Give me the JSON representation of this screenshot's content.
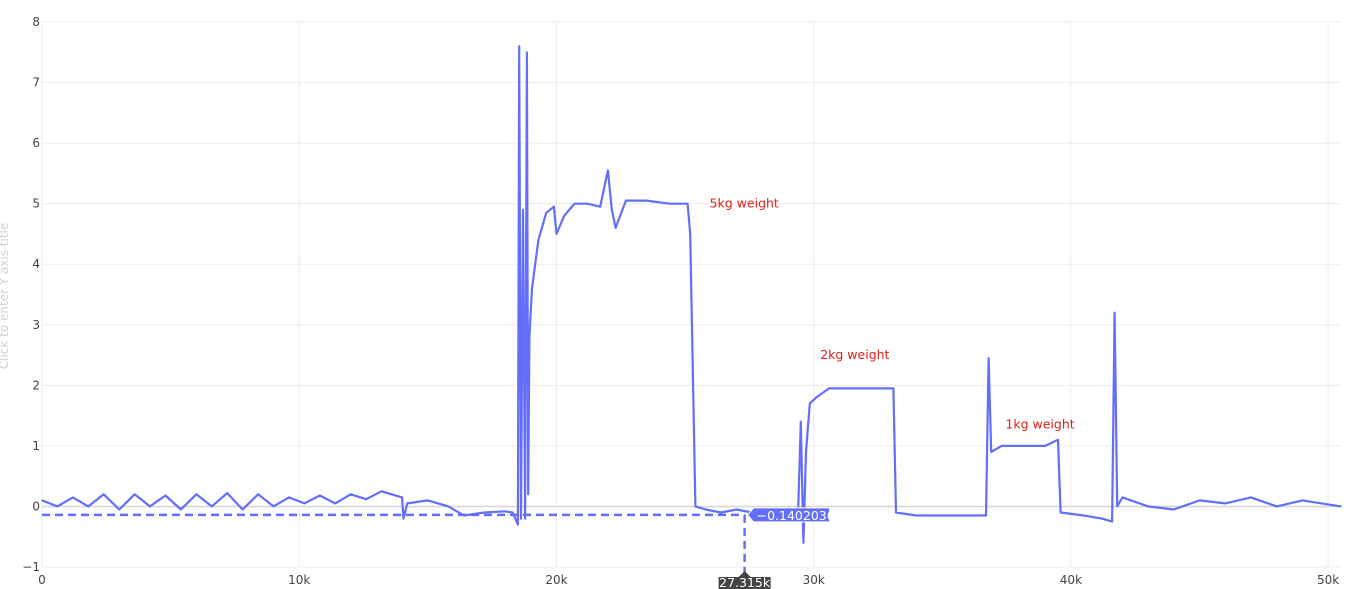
{
  "chart_data": {
    "type": "line",
    "title": "",
    "xlabel": "",
    "ylabel_placeholder": "Click to enter Y axis title",
    "xlim": [
      0,
      50500
    ],
    "ylim": [
      -1,
      8
    ],
    "x_ticks": [
      0,
      10000,
      20000,
      30000,
      40000,
      50000
    ],
    "x_tick_labels": [
      "0",
      "10k",
      "20k",
      "30k",
      "40k",
      "50k"
    ],
    "y_ticks": [
      -1,
      0,
      1,
      2,
      3,
      4,
      5,
      6,
      7,
      8
    ],
    "y_tick_labels": [
      "−1",
      "0",
      "1",
      "2",
      "3",
      "4",
      "5",
      "6",
      "7",
      "8"
    ],
    "grid": true,
    "line_color": "#636efa",
    "annotation_color": "#e0201a",
    "annotations": [
      {
        "text": "5kg weight",
        "x": 27300,
        "y": 5.0
      },
      {
        "text": "2kg weight",
        "x": 31600,
        "y": 2.5
      },
      {
        "text": "1kg weight",
        "x": 38800,
        "y": 1.35
      }
    ],
    "hover": {
      "x": 27315,
      "y": -0.1402036,
      "x_label": "27.315k",
      "y_label": "−0.1402036"
    },
    "series": [
      {
        "points": [
          [
            0,
            0.1
          ],
          [
            600,
            0.0
          ],
          [
            1200,
            0.15
          ],
          [
            1800,
            0.0
          ],
          [
            2400,
            0.2
          ],
          [
            3000,
            -0.05
          ],
          [
            3600,
            0.2
          ],
          [
            4200,
            0.0
          ],
          [
            4800,
            0.18
          ],
          [
            5400,
            -0.05
          ],
          [
            6000,
            0.2
          ],
          [
            6600,
            0.0
          ],
          [
            7200,
            0.22
          ],
          [
            7800,
            -0.05
          ],
          [
            8400,
            0.2
          ],
          [
            9000,
            0.0
          ],
          [
            9600,
            0.15
          ],
          [
            10200,
            0.05
          ],
          [
            10800,
            0.18
          ],
          [
            11400,
            0.05
          ],
          [
            12000,
            0.2
          ],
          [
            12600,
            0.12
          ],
          [
            13200,
            0.25
          ],
          [
            14000,
            0.15
          ],
          [
            14050,
            -0.2
          ],
          [
            14200,
            0.05
          ],
          [
            15000,
            0.1
          ],
          [
            15800,
            0.0
          ],
          [
            16400,
            -0.15
          ],
          [
            17200,
            -0.1
          ],
          [
            18000,
            -0.08
          ],
          [
            18300,
            -0.1
          ],
          [
            18500,
            -0.3
          ],
          [
            18550,
            7.6
          ],
          [
            18620,
            -0.2
          ],
          [
            18700,
            4.9
          ],
          [
            18780,
            -0.2
          ],
          [
            18850,
            7.5
          ],
          [
            18900,
            0.2
          ],
          [
            18950,
            2.8
          ],
          [
            19050,
            3.6
          ],
          [
            19300,
            4.4
          ],
          [
            19600,
            4.85
          ],
          [
            19900,
            4.95
          ],
          [
            20000,
            4.5
          ],
          [
            20300,
            4.8
          ],
          [
            20700,
            5.0
          ],
          [
            21200,
            5.0
          ],
          [
            21700,
            4.95
          ],
          [
            22000,
            5.55
          ],
          [
            22150,
            4.9
          ],
          [
            22300,
            4.6
          ],
          [
            22700,
            5.05
          ],
          [
            23500,
            5.05
          ],
          [
            24400,
            5.0
          ],
          [
            25100,
            5.0
          ],
          [
            25200,
            4.5
          ],
          [
            25400,
            0.0
          ],
          [
            25800,
            -0.05
          ],
          [
            26400,
            -0.1
          ],
          [
            27000,
            -0.05
          ],
          [
            27600,
            -0.1
          ],
          [
            28200,
            -0.05
          ],
          [
            28800,
            -0.05
          ],
          [
            29400,
            -0.05
          ],
          [
            29500,
            1.4
          ],
          [
            29600,
            -0.6
          ],
          [
            29700,
            0.9
          ],
          [
            29850,
            1.7
          ],
          [
            30100,
            1.8
          ],
          [
            30600,
            1.95
          ],
          [
            31600,
            1.95
          ],
          [
            32400,
            1.95
          ],
          [
            33100,
            1.95
          ],
          [
            33200,
            -0.1
          ],
          [
            34000,
            -0.15
          ],
          [
            35000,
            -0.15
          ],
          [
            36000,
            -0.15
          ],
          [
            36700,
            -0.15
          ],
          [
            36800,
            2.45
          ],
          [
            36900,
            0.9
          ],
          [
            37300,
            1.0
          ],
          [
            38200,
            1.0
          ],
          [
            39000,
            1.0
          ],
          [
            39500,
            1.1
          ],
          [
            39600,
            -0.1
          ],
          [
            40500,
            -0.15
          ],
          [
            41200,
            -0.2
          ],
          [
            41600,
            -0.25
          ],
          [
            41700,
            3.2
          ],
          [
            41800,
            0.0
          ],
          [
            42000,
            0.15
          ],
          [
            43000,
            0.0
          ],
          [
            44000,
            -0.05
          ],
          [
            45000,
            0.1
          ],
          [
            46000,
            0.05
          ],
          [
            47000,
            0.15
          ],
          [
            48000,
            0.0
          ],
          [
            49000,
            0.1
          ],
          [
            50500,
            0.0
          ]
        ]
      }
    ]
  }
}
